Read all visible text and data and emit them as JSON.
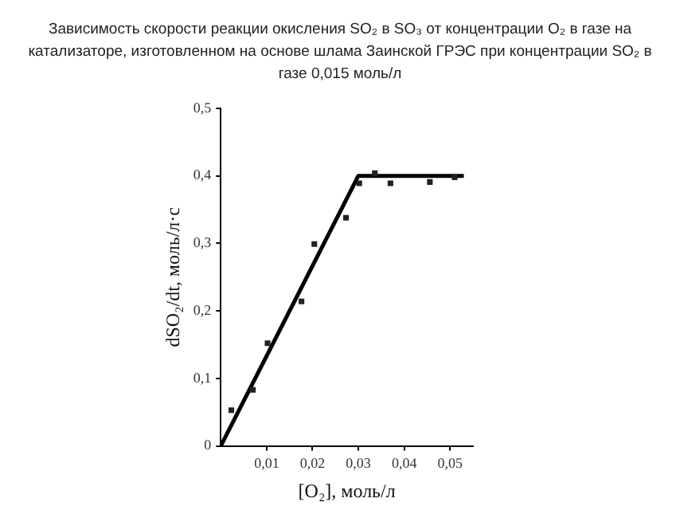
{
  "chart_data": {
    "type": "scatter",
    "title": "Зависимость скорости реакции окисления SO₂ в SO₃ от концентрации O₂ в газе на катализаторе, изготовленном на основе шлама Заинской ГРЭС при концентрации SO₂ в газе 0,015 моль/л",
    "xlabel": "[O₂], моль/л",
    "ylabel": "dSO₂/dt, моль/л·с",
    "xlim": [
      0,
      0.055
    ],
    "ylim": [
      0,
      0.5
    ],
    "xticks": [
      {
        "value": 0.01,
        "label": "0,01"
      },
      {
        "value": 0.02,
        "label": "0,02"
      },
      {
        "value": 0.03,
        "label": "0,03"
      },
      {
        "value": 0.04,
        "label": "0,04"
      },
      {
        "value": 0.05,
        "label": "0,05"
      }
    ],
    "yticks": [
      0,
      {
        "value": 0.1,
        "label": "0,1"
      },
      {
        "value": 0.2,
        "label": "0,2"
      },
      {
        "value": 0.3,
        "label": "0,3"
      },
      {
        "value": 0.4,
        "label": "0,4"
      },
      {
        "value": 0.5,
        "label": "0,5"
      }
    ],
    "grid": false,
    "legend": false,
    "series": [
      {
        "color": "#222222",
        "marker": "square",
        "x": [
          0.0023,
          0.007,
          0.0102,
          0.0176,
          0.0204,
          0.0273,
          0.0302,
          0.0336,
          0.037,
          0.0456,
          0.051
        ],
        "values": [
          0.053,
          0.083,
          0.152,
          0.214,
          0.299,
          0.338,
          0.389,
          0.404,
          0.389,
          0.391,
          0.398
        ]
      },
      {
        "type": "line",
        "color": "#000000",
        "marker": "none",
        "line_style": "solid",
        "x": [
          0,
          0.03,
          0.053
        ],
        "values": [
          0,
          0.4,
          0.4
        ]
      }
    ]
  }
}
